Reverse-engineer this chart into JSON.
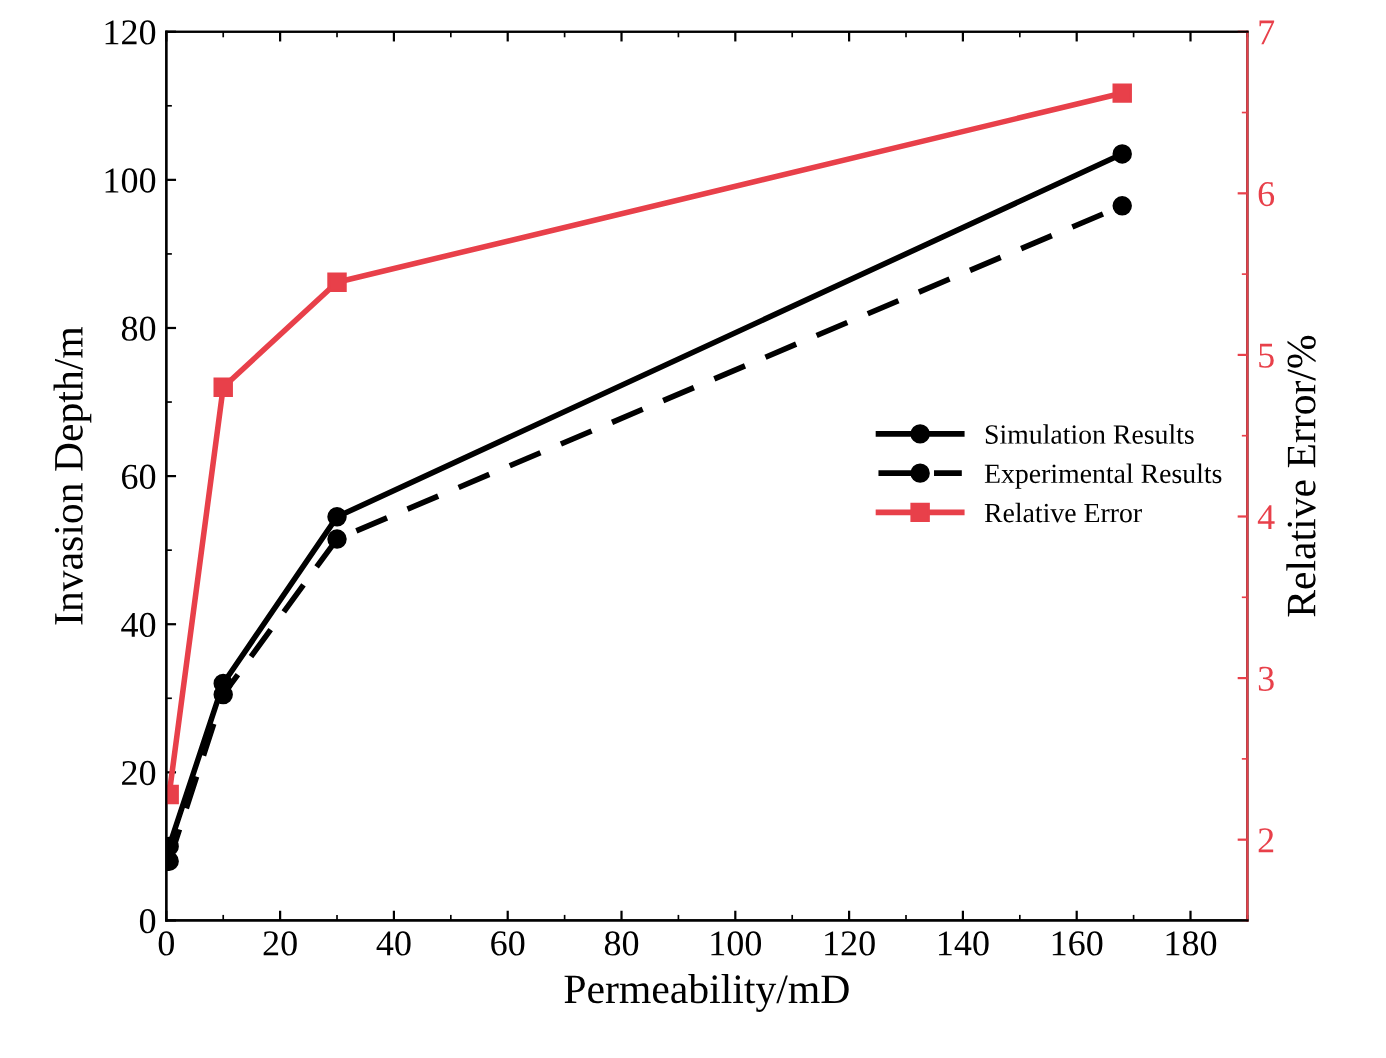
{
  "chart_data": {
    "type": "line",
    "xlabel": "Permeability/mD",
    "ylabel": "Invasion Depth/m",
    "y2label": "Relative Error/%",
    "xlim": [
      0,
      190
    ],
    "xticks": [
      0,
      20,
      40,
      60,
      80,
      100,
      120,
      140,
      160,
      180
    ],
    "ylim": [
      0,
      120
    ],
    "yticks": [
      0,
      20,
      40,
      60,
      80,
      100,
      120
    ],
    "y2lim": [
      1.5,
      7
    ],
    "y2ticks": [
      2,
      3,
      4,
      5,
      6,
      7
    ],
    "legend": "right",
    "grid": false,
    "marker": "circle",
    "series": [
      {
        "name": "Simulation Results",
        "color": "#000000",
        "x": [
          0.5,
          10,
          30,
          168
        ],
        "values": [
          10,
          32,
          54.5,
          103.5
        ],
        "line_style": "solid"
      },
      {
        "name": "Experimental Results",
        "color": "#000000",
        "x": [
          0.5,
          10,
          30,
          168
        ],
        "values": [
          8,
          30.5,
          51.5,
          96.5
        ],
        "line_style": "dashed"
      },
      {
        "name": "Relative Error",
        "color": "#e8404a",
        "x": [
          0.5,
          10,
          30,
          168
        ],
        "values": [
          2.28,
          4.8,
          5.45,
          6.62
        ],
        "line_style": "solid",
        "marker": "square",
        "axis": "y2"
      }
    ]
  }
}
